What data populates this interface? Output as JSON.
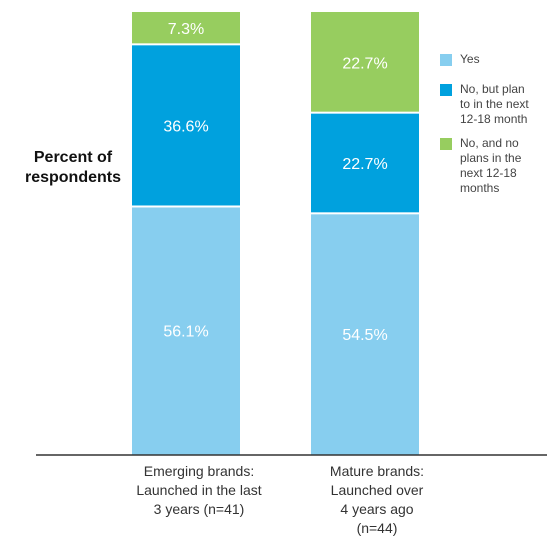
{
  "chart_data": {
    "type": "bar",
    "stacked": true,
    "ylabel": "Percent of respondents",
    "categories": [
      "Emerging brands: Launched in the last 3 years (n=41)",
      "Mature brands: Launched over 4 years ago (n=44)"
    ],
    "category_lines": [
      [
        "Emerging brands:",
        "Launched in the last",
        "3 years (n=41)"
      ],
      [
        "Mature brands:",
        "Launched over",
        "4 years ago",
        "(n=44)"
      ]
    ],
    "series": [
      {
        "name": "Yes",
        "color": "#87ceef",
        "values": [
          56.1,
          54.5
        ],
        "labels": [
          "56.1%",
          "54.5%"
        ]
      },
      {
        "name": "No, but plan to in the next 12-18 month",
        "color": "#00a1de",
        "values": [
          36.6,
          22.7
        ],
        "labels": [
          "36.6%",
          "22.7%"
        ]
      },
      {
        "name": "No, and no plans in the next 12-18 months",
        "color": "#97cd5f",
        "values": [
          7.3,
          22.7
        ],
        "labels": [
          "7.3%",
          "22.7%"
        ]
      }
    ],
    "legend_lines": [
      [
        "Yes"
      ],
      [
        "No, but plan",
        "to in the next",
        "12-18 month"
      ],
      [
        "No, and no",
        "plans in the",
        "next 12-18",
        "months"
      ]
    ],
    "legend_position": "right",
    "ylim": [
      0,
      100
    ],
    "grid": false
  }
}
